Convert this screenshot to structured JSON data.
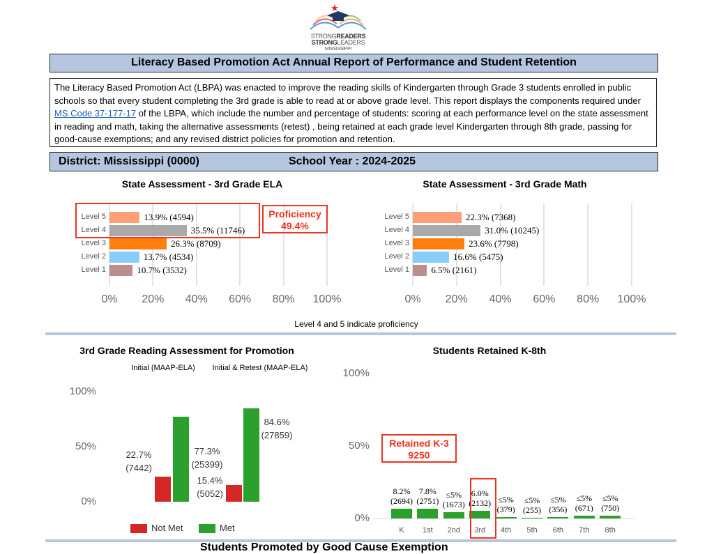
{
  "logo": {
    "line1a": "STRONG",
    "line1b": "READERS",
    "line2a": "STRONG",
    "line2b": "LEADERS",
    "line3": "MISSISSIPPI"
  },
  "title": "Literacy Based Promotion Act Annual Report of Performance and Student Retention",
  "description": {
    "before": "The Literacy Based Promotion Act (LBPA) was enacted to improve the reading skills of Kindergarten through Grade 3 students enrolled in public schools so that every student completing the 3rd grade is able to read at or above grade level. This report displays the components required under ",
    "link": "MS Code 37-177-17",
    "after": " of the LBPA, which include the number and percentage of students: scoring at each performance level on the state assessment in reading and math, taking the alternative assessments (retest) , being retained at each grade level Kindergarten through 8th grade, passing for good-cause exemptions; and any revised district policies for promotion and retention."
  },
  "district": "District: Mississippi (0000)",
  "school_year": "School Year : 2024-2025",
  "proficiency_note": "Level 4 and 5 indicate proficiency",
  "next_section_title": "Students Promoted by Good Cause Exemption",
  "chart_data": [
    {
      "type": "bar",
      "orientation": "horizontal",
      "title": "State Assessment - 3rd Grade ELA",
      "categories": [
        "Level 5",
        "Level 4",
        "Level 3",
        "Level 2",
        "Level 1"
      ],
      "values": [
        13.9,
        35.5,
        26.3,
        13.7,
        10.7
      ],
      "labels": [
        "13.9% (4594)",
        "35.5% (11746)",
        "26.3% (8709)",
        "13.7% (4534)",
        "10.7% (3532)"
      ],
      "colors": [
        "#ffa07a",
        "#a9a9a9",
        "#ff7f0e",
        "#87cefa",
        "#bc8f8f"
      ],
      "xticks": [
        "0%",
        "20%",
        "40%",
        "60%",
        "80%",
        "100%"
      ],
      "xlim": [
        0,
        100
      ],
      "annotation": {
        "line1": "Proficiency",
        "line2": "49.4%"
      }
    },
    {
      "type": "bar",
      "orientation": "horizontal",
      "title": "State Assessment - 3rd Grade Math",
      "categories": [
        "Level 5",
        "Level 4",
        "Level 3",
        "Level 2",
        "Level 1"
      ],
      "values": [
        22.3,
        31.0,
        23.6,
        16.6,
        6.5
      ],
      "labels": [
        "22.3% (7368)",
        "31.0% (10245)",
        "23.6% (7798)",
        "16.6% (5475)",
        "6.5% (2161)"
      ],
      "colors": [
        "#ffa07a",
        "#a9a9a9",
        "#ff7f0e",
        "#87cefa",
        "#bc8f8f"
      ],
      "xticks": [
        "0%",
        "20%",
        "40%",
        "60%",
        "80%",
        "100%"
      ],
      "xlim": [
        0,
        100
      ]
    },
    {
      "type": "bar",
      "title": "3rd Grade Reading Assessment for Promotion",
      "categories": [
        "Initial (MAAP-ELA)",
        "Initial & Retest (MAAP-ELA)"
      ],
      "series": [
        {
          "name": "Not Met",
          "color": "#d62728",
          "values": [
            22.7,
            15.4
          ],
          "labels": [
            [
              "22.7%",
              "(7442)"
            ],
            [
              "15.4%",
              "(5052)"
            ]
          ]
        },
        {
          "name": "Met",
          "color": "#2ca02c",
          "values": [
            77.3,
            84.6
          ],
          "labels": [
            [
              "77.3%",
              "(25399)"
            ],
            [
              "84.6%",
              "(27859)"
            ]
          ]
        }
      ],
      "yticks": [
        "100%",
        "50%",
        "0%"
      ],
      "ylim": [
        0,
        100
      ],
      "legend": "bottom"
    },
    {
      "type": "bar",
      "title": "Students Retained K-8th",
      "categories": [
        "K",
        "1st",
        "2nd",
        "3rd",
        "4th",
        "5th",
        "6th",
        "7th",
        "8th"
      ],
      "values": [
        8.2,
        7.8,
        5.0,
        6.0,
        1.1,
        0.8,
        1.1,
        2.2,
        2.4
      ],
      "labels": [
        [
          "8.2%",
          "(2694)"
        ],
        [
          "7.8%",
          "(2751)"
        ],
        [
          "≤5%",
          "(1673)"
        ],
        [
          "6.0%",
          "(2132)"
        ],
        [
          "≤5%",
          "(379)"
        ],
        [
          "≤5%",
          "(255)"
        ],
        [
          "≤5%",
          "(356)"
        ],
        [
          "≤5%",
          "(671)"
        ],
        [
          "≤5%",
          "(750)"
        ]
      ],
      "color": "#2ca02c",
      "yticks": [
        "100%",
        "50%",
        "0%"
      ],
      "ylim": [
        0,
        100
      ],
      "annotation": {
        "line1": "Retained K-3",
        "line2": "9250"
      }
    }
  ]
}
